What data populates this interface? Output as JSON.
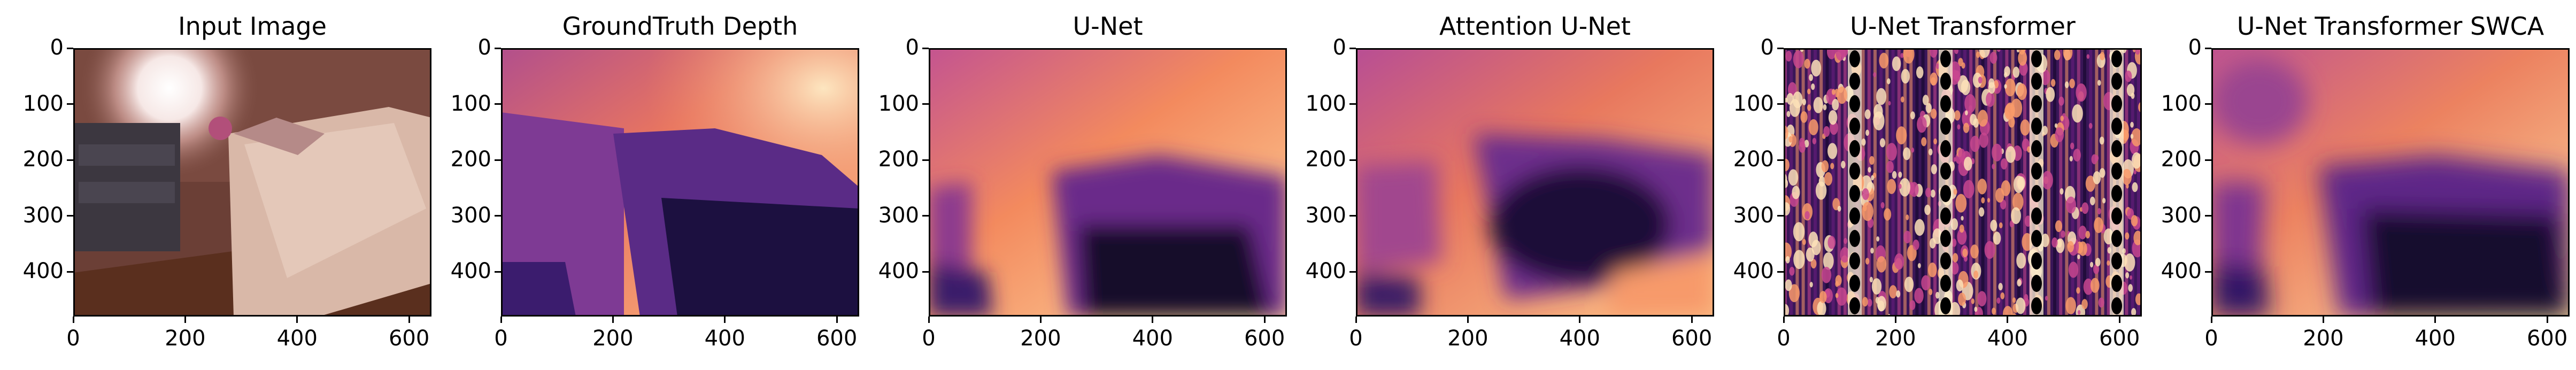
{
  "panels": [
    {
      "id": "input",
      "title": "Input Image"
    },
    {
      "id": "gt",
      "title": "GroundTruth Depth"
    },
    {
      "id": "unet",
      "title": "U-Net"
    },
    {
      "id": "attn",
      "title": "Attention U-Net"
    },
    {
      "id": "unett",
      "title": "U-Net Transformer"
    },
    {
      "id": "swca",
      "title": "U-Net Transformer SWCA"
    }
  ],
  "axes": {
    "y_ticks": [
      "0",
      "100",
      "200",
      "300",
      "400"
    ],
    "x_ticks": [
      "0",
      "200",
      "400",
      "600"
    ]
  },
  "colors": {
    "magma_dark": "#120c2e",
    "magma_purple": "#5b2a8a",
    "magma_magenta": "#b0479a",
    "magma_orange": "#f3845c",
    "magma_light": "#fde2b8"
  }
}
